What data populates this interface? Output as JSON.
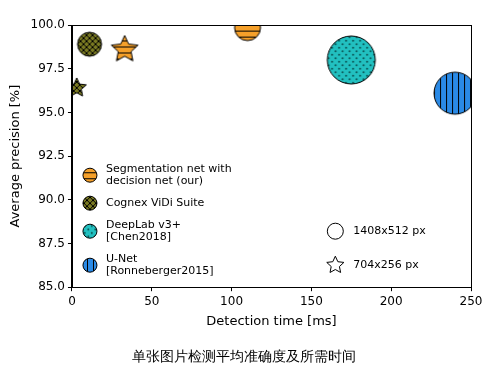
{
  "chart_data": {
    "type": "scatter",
    "title": "单张图片检测平均准确度及所需时间",
    "x_label": "Detection time [ms]",
    "y_label": "Average precision [%]",
    "xlim": [
      0,
      250
    ],
    "xticks": [
      0,
      50,
      100,
      150,
      200,
      250
    ],
    "ylim": [
      85,
      100
    ],
    "yticks": [
      {
        "value": 85,
        "label": "85.0"
      },
      {
        "value": 87.5,
        "label": "87.5"
      },
      {
        "value": 90,
        "label": "90.0"
      },
      {
        "value": 92.5,
        "label": "92.5"
      },
      {
        "value": 95,
        "label": "95.0"
      },
      {
        "value": 97.5,
        "label": "97.5"
      },
      {
        "value": 100,
        "label": "100.0"
      }
    ],
    "grid": false,
    "legend": "lower left",
    "series": [
      {
        "name": "Segmentation net with decision net (our)",
        "color": "#f5a02a",
        "x": [
          110,
          33
        ],
        "values": [
          99.85,
          98.6
        ],
        "marker": [
          "circle",
          "star"
        ],
        "sizes": [
          13,
          14
        ]
      },
      {
        "name": "Cognex ViDi Suite",
        "color": "#7a7a22",
        "x": [
          11,
          3
        ],
        "values": [
          98.9,
          96.4
        ],
        "marker": [
          "circle",
          "star"
        ],
        "sizes": [
          12,
          10
        ]
      },
      {
        "name": "DeepLab v3+ [Chen2018]",
        "color": "#22c0c0",
        "x": [
          175
        ],
        "values": [
          98.0
        ],
        "marker": [
          "circle"
        ],
        "sizes": [
          24
        ]
      },
      {
        "name": "U-Net [Ronneberger2015]",
        "color": "#2a8ae6",
        "x": [
          240
        ],
        "values": [
          96.1
        ],
        "marker": [
          "circle"
        ],
        "sizes": [
          21
        ]
      }
    ],
    "marker_legend": [
      {
        "marker": "circle",
        "label": "1408x512 px"
      },
      {
        "marker": "star",
        "label": "704x256 px"
      }
    ]
  }
}
